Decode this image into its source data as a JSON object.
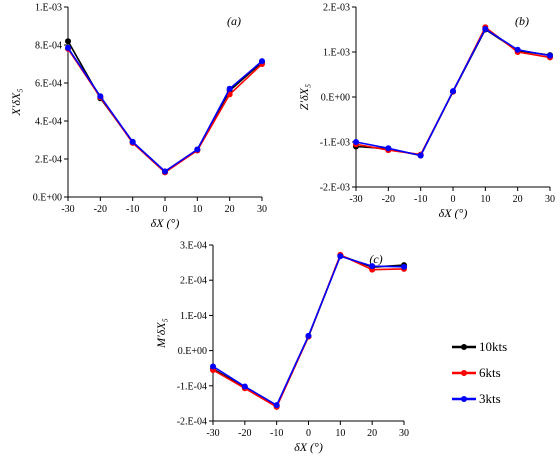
{
  "chart_data": [
    {
      "type": "line",
      "panel_label": "(a)",
      "ylabel": "X′δX₅",
      "xlabel": "δX (°)",
      "x": [
        -30,
        -20,
        -10,
        0,
        10,
        20,
        30
      ],
      "xlim": [
        -30,
        30
      ],
      "xticks": [
        "-30",
        "-20",
        "-10",
        "0",
        "10",
        "20",
        "30"
      ],
      "ylim": [
        0,
        0.001
      ],
      "yticks": [
        "0.E+00",
        "2.E-04",
        "4.E-04",
        "6.E-04",
        "8.E-04",
        "1.E-03"
      ],
      "series": [
        {
          "name": "10kts",
          "values": [
            0.00082,
            0.00052,
            0.00029,
            0.00013,
            0.00025,
            0.00056,
            0.00071
          ]
        },
        {
          "name": "6kts",
          "values": [
            0.00078,
            0.000525,
            0.000285,
            0.00013,
            0.000245,
            0.00054,
            0.0007
          ]
        },
        {
          "name": "3kts",
          "values": [
            0.000785,
            0.00053,
            0.00029,
            0.000135,
            0.00025,
            0.00057,
            0.000715
          ]
        }
      ]
    },
    {
      "type": "line",
      "panel_label": "(b)",
      "ylabel": "Z′δX₅",
      "xlabel": "δX (°)",
      "x": [
        -30,
        -20,
        -10,
        0,
        10,
        20,
        30
      ],
      "xlim": [
        -30,
        30
      ],
      "xticks": [
        "-30",
        "-20",
        "-10",
        "0",
        "10",
        "20",
        "30"
      ],
      "ylim": [
        -0.002,
        0.002
      ],
      "yticks": [
        "-2.E-03",
        "-1.E-03",
        "0.E+00",
        "1.E-03",
        "2.E-03"
      ],
      "series": [
        {
          "name": "10kts",
          "values": [
            -0.0011,
            -0.00115,
            -0.0013,
            0.00012,
            0.0015,
            0.00103,
            0.00093
          ]
        },
        {
          "name": "6kts",
          "values": [
            -0.00105,
            -0.00118,
            -0.00128,
            0.00012,
            0.00155,
            0.001,
            0.00088
          ]
        },
        {
          "name": "3kts",
          "values": [
            -0.001,
            -0.00114,
            -0.0013,
            0.00013,
            0.00151,
            0.00105,
            0.00092
          ]
        }
      ]
    },
    {
      "type": "line",
      "panel_label": "(c)",
      "ylabel": "M′δX₅",
      "xlabel": "δX (°)",
      "x": [
        -30,
        -20,
        -10,
        0,
        10,
        20,
        30
      ],
      "xlim": [
        -30,
        30
      ],
      "xticks": [
        "-30",
        "-20",
        "-10",
        "0",
        "10",
        "20",
        "30"
      ],
      "ylim": [
        -0.0002,
        0.0003
      ],
      "yticks": [
        "-2.E-04",
        "-1.E-04",
        "0.E+00",
        "1.E-04",
        "2.E-04",
        "3.E-04"
      ],
      "series": [
        {
          "name": "10kts",
          "values": [
            -5.2e-05,
            -0.000105,
            -0.000158,
            4e-05,
            0.00027,
            0.000237,
            0.000243
          ]
        },
        {
          "name": "6kts",
          "values": [
            -5.5e-05,
            -0.000107,
            -0.00016,
            4e-05,
            0.000272,
            0.00023,
            0.000232
          ]
        },
        {
          "name": "3kts",
          "values": [
            -4.5e-05,
            -0.000102,
            -0.000155,
            4.2e-05,
            0.000268,
            0.00024,
            0.000238
          ]
        }
      ]
    }
  ],
  "legend": {
    "placement": "right",
    "items": [
      {
        "label": "10kts",
        "color": "#000000"
      },
      {
        "label": "6kts",
        "color": "#ff0000"
      },
      {
        "label": "3kts",
        "color": "#0000ff"
      }
    ]
  }
}
